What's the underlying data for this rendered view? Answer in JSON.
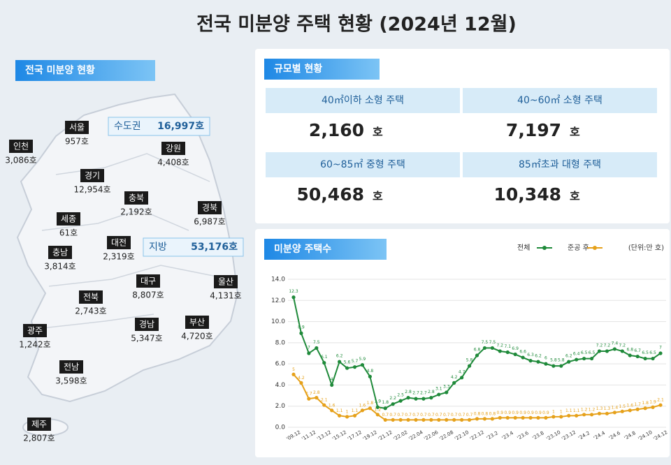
{
  "header": {
    "title": "전국 미분양 주택 현황 (2024년 12월)"
  },
  "map": {
    "title": "전국 미분양 현황",
    "callouts": [
      {
        "label": "수도권",
        "value": "16,997호"
      },
      {
        "label": "지방",
        "value": "53,176호"
      }
    ],
    "regions": [
      {
        "name": "서울",
        "value": "957호"
      },
      {
        "name": "인천",
        "value": "3,086호"
      },
      {
        "name": "경기",
        "value": "12,954호"
      },
      {
        "name": "강원",
        "value": "4,408호"
      },
      {
        "name": "충북",
        "value": "2,192호"
      },
      {
        "name": "경북",
        "value": "6,987호"
      },
      {
        "name": "세종",
        "value": "61호"
      },
      {
        "name": "대전",
        "value": "2,319호"
      },
      {
        "name": "충남",
        "value": "3,814호"
      },
      {
        "name": "대구",
        "value": "8,807호"
      },
      {
        "name": "울산",
        "value": "4,131호"
      },
      {
        "name": "전북",
        "value": "2,743호"
      },
      {
        "name": "경남",
        "value": "5,347호"
      },
      {
        "name": "부산",
        "value": "4,720호"
      },
      {
        "name": "광주",
        "value": "1,242호"
      },
      {
        "name": "전남",
        "value": "3,598호"
      },
      {
        "name": "제주",
        "value": "2,807호"
      }
    ]
  },
  "sizes": {
    "title": "규모별 현황",
    "items": [
      {
        "label": "40㎡이하 소형 주택",
        "value": "2,160",
        "unit": "호"
      },
      {
        "label": "40~60㎡ 소형 주택",
        "value": "7,197",
        "unit": "호"
      },
      {
        "label": "60~85㎡ 중형 주택",
        "value": "50,468",
        "unit": "호"
      },
      {
        "label": "85㎡초과 대형 주택",
        "value": "10,348",
        "unit": "호"
      }
    ]
  },
  "chart_data": {
    "type": "line",
    "title": "미분양 주택수",
    "unit_note": "(단위:만 호)",
    "categories": [
      "'09.12",
      null,
      "'11.12",
      null,
      "'13.12",
      null,
      "'15.12",
      null,
      "'17.12",
      null,
      "'19.12",
      null,
      "'21.12",
      null,
      "'22.02",
      null,
      "'22.04",
      null,
      "'22.06",
      null,
      "'22.08",
      null,
      "'22.10",
      null,
      "'22.12",
      null,
      "'23.2",
      null,
      "'23.4",
      null,
      "'23.6",
      null,
      "'23.8",
      null,
      "'23.10",
      null,
      "'23.12",
      null,
      "'24.2",
      null,
      "'24.4",
      null,
      "'24.6",
      null,
      "'24.8",
      null,
      "'24.10",
      null,
      "'24.12"
    ],
    "series": [
      {
        "name": "전체",
        "color": "#1f8a3a",
        "values": [
          12.3,
          8.9,
          7.0,
          7.5,
          6.1,
          4.0,
          6.2,
          5.6,
          5.7,
          5.9,
          4.8,
          1.9,
          1.8,
          2.2,
          2.5,
          2.8,
          2.7,
          2.7,
          2.8,
          3.1,
          3.3,
          4.2,
          4.7,
          5.8,
          6.8,
          7.5,
          7.5,
          7.2,
          7.1,
          6.9,
          6.6,
          6.3,
          6.2,
          6.0,
          5.8,
          5.8,
          6.2,
          6.4,
          6.5,
          6.5,
          7.2,
          7.2,
          7.4,
          7.2,
          6.8,
          6.7,
          6.5,
          6.5,
          7.0
        ]
      },
      {
        "name": "준공 후",
        "color": "#e6a11a",
        "values": [
          5.0,
          4.2,
          2.7,
          2.8,
          2.1,
          1.6,
          1.1,
          1.0,
          1.1,
          1.6,
          1.8,
          1.2,
          0.7,
          0.7,
          0.7,
          0.7,
          0.7,
          0.7,
          0.7,
          0.7,
          0.7,
          0.7,
          0.7,
          0.7,
          0.8,
          0.8,
          0.8,
          0.9,
          0.9,
          0.9,
          0.9,
          0.9,
          0.9,
          0.9,
          1.0,
          1.0,
          1.1,
          1.1,
          1.2,
          1.2,
          1.3,
          1.3,
          1.4,
          1.5,
          1.6,
          1.7,
          1.8,
          1.9,
          2.1
        ]
      }
    ],
    "ylim": [
      0,
      14
    ],
    "yticks": [
      {
        "value": 0,
        "label": "0.0"
      },
      {
        "value": 2,
        "label": "2.0"
      },
      {
        "value": 4,
        "label": "4.0"
      },
      {
        "value": 6,
        "label": "6.0"
      },
      {
        "value": 8,
        "label": "8.0"
      },
      {
        "value": 10,
        "label": "10.0"
      },
      {
        "value": 12,
        "label": "12.0"
      },
      {
        "value": 14,
        "label": "14.0"
      }
    ],
    "grid": true
  }
}
